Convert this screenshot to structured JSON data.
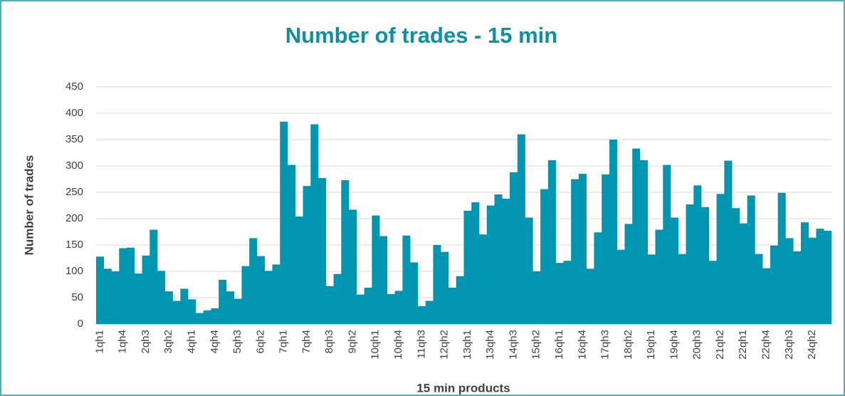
{
  "chart_data": {
    "type": "bar",
    "title": "Number of trades - 15 min",
    "x_label": "15 min products",
    "y_label": "Number of trades",
    "categories": [
      "1qh1",
      null,
      null,
      "1qh4",
      null,
      null,
      "2qh3",
      null,
      null,
      "3qh2",
      null,
      null,
      "4qh1",
      null,
      null,
      "4qh4",
      null,
      null,
      "5qh3",
      null,
      null,
      "6qh2",
      null,
      null,
      "7qh1",
      null,
      null,
      "7qh4",
      null,
      null,
      "8qh3",
      null,
      null,
      "9qh2",
      null,
      null,
      "10qh1",
      null,
      null,
      "10qh4",
      null,
      null,
      "11qh3",
      null,
      null,
      "12qh2",
      null,
      null,
      "13qh1",
      null,
      null,
      "13qh4",
      null,
      null,
      "14qh3",
      null,
      null,
      "15qh2",
      null,
      null,
      "16qh1",
      null,
      null,
      "16qh4",
      null,
      null,
      "17qh3",
      null,
      null,
      "18qh2",
      null,
      null,
      "19qh1",
      null,
      null,
      "19qh4",
      null,
      null,
      "20qh3",
      null,
      null,
      "21qh2",
      null,
      null,
      "22qh1",
      null,
      null,
      "22qh4",
      null,
      null,
      "23qh3",
      null,
      null,
      "24qh2",
      null,
      null
    ],
    "values": [
      128,
      105,
      100,
      144,
      145,
      96,
      130,
      179,
      101,
      62,
      44,
      67,
      47,
      21,
      26,
      30,
      84,
      62,
      48,
      110,
      163,
      129,
      101,
      113,
      384,
      302,
      204,
      262,
      379,
      277,
      72,
      95,
      273,
      217,
      56,
      69,
      206,
      167,
      57,
      63,
      168,
      117,
      34,
      44,
      150,
      137,
      69,
      91,
      215,
      231,
      170,
      225,
      246,
      238,
      288,
      360,
      202,
      100,
      256,
      311,
      116,
      120,
      275,
      285,
      105,
      174,
      284,
      350,
      141,
      190,
      333,
      311,
      132,
      179,
      302,
      202,
      133,
      227,
      263,
      222,
      120,
      247,
      310,
      220,
      191,
      244,
      133,
      106,
      149,
      249,
      163,
      138,
      193,
      164,
      181,
      177
    ],
    "color": "#0095b0",
    "ylim": [
      0,
      450
    ],
    "yticks": [
      0,
      50,
      100,
      150,
      200,
      250,
      300,
      350,
      400,
      450
    ],
    "grid": true
  }
}
